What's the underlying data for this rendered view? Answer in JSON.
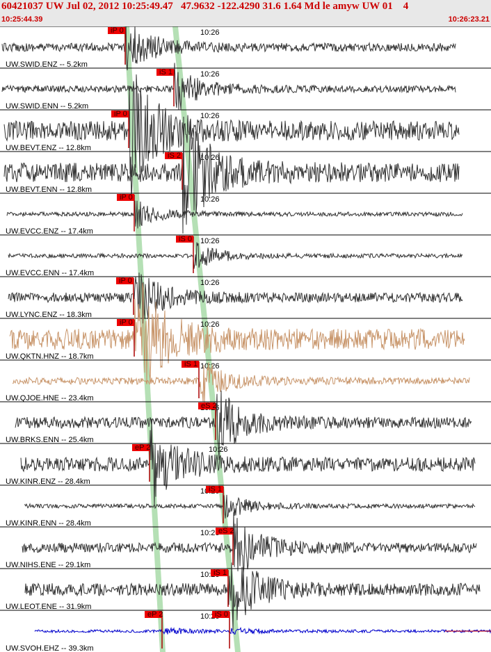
{
  "header": {
    "title": "60421037 UW Jul 02, 2012 10:25:49.47   47.9632 -122.4290 31.6 1.64 Md le amyw UW 01    4",
    "start_time": "10:25:44.39",
    "end_time": "10:26:23.21"
  },
  "traces": [
    {
      "label": "UW.SWID.ENZ -- 5.2km",
      "time": "10:26",
      "picks": [
        "iP 0"
      ],
      "color": "#333333"
    },
    {
      "label": "UW.SWID.ENN -- 5.2km",
      "time": "10:26",
      "picks": [
        "iS 1"
      ],
      "color": "#333333"
    },
    {
      "label": "UW.BEVT.ENZ -- 12.8km",
      "time": "10:26",
      "picks": [
        "iP 0"
      ],
      "color": "#333333"
    },
    {
      "label": "UW.BEVT.ENN -- 12.8km",
      "time": "10:26",
      "picks": [
        "iS 2"
      ],
      "color": "#333333"
    },
    {
      "label": "UW.EVCC.ENZ -- 17.4km",
      "time": "10:26",
      "picks": [
        "iP 0"
      ],
      "color": "#333333"
    },
    {
      "label": "UW.EVCC.ENN -- 17.4km",
      "time": "10:26",
      "picks": [
        "iS 0"
      ],
      "color": "#333333"
    },
    {
      "label": "UW.LYNC.ENZ -- 18.3km",
      "time": "10:26",
      "picks": [
        "iP 0"
      ],
      "color": "#333333"
    },
    {
      "label": "UW.QKTN.HNZ -- 18.7km",
      "time": "10:26",
      "picks": [
        "iP 0"
      ],
      "color": "#c8956a"
    },
    {
      "label": "UW.QJOE.HNE -- 23.4km",
      "time": "10:26",
      "picks": [
        "iS 1"
      ],
      "color": "#c8956a"
    },
    {
      "label": "UW.BRKS.ENN -- 25.4km",
      "time": "10:26",
      "picks": [
        "eS 2"
      ],
      "color": "#333333"
    },
    {
      "label": "UW.KINR.ENZ -- 28.4km",
      "time": "10:26",
      "picks": [
        "eP 2"
      ],
      "color": "#333333"
    },
    {
      "label": "UW.KINR.ENN -- 28.4km",
      "time": "10:26",
      "picks": [
        "iS 1"
      ],
      "color": "#333333"
    },
    {
      "label": "UW.NIHS.ENE -- 29.1km",
      "time": "10:26",
      "picks": [
        "eS 2"
      ],
      "color": "#333333"
    },
    {
      "label": "UW.LEOT.ENE -- 31.9km",
      "time": "10:26",
      "picks": [
        "iS 1"
      ],
      "color": "#333333"
    },
    {
      "label": "UW.SVOH.EHZ -- 39.3km",
      "time": "10:26",
      "picks": [
        "eP 2",
        "iS 0"
      ],
      "color": "#0000cc"
    }
  ]
}
